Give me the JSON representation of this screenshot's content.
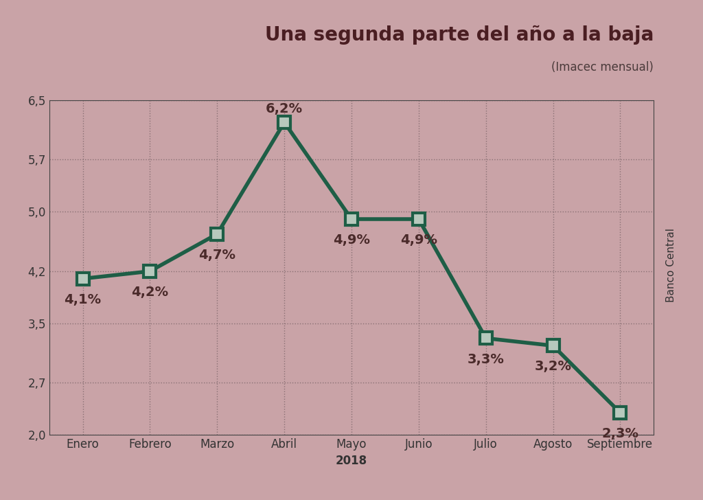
{
  "chart_data": {
    "type": "line",
    "title": "Una segunda parte del año a la baja",
    "subtitle": "(Imacec mensual)",
    "source": "Banco Central",
    "x_label": "2018",
    "categories": [
      "Enero",
      "Febrero",
      "Marzo",
      "Abril",
      "Mayo",
      "Junio",
      "Julio",
      "Agosto",
      "Septiembre"
    ],
    "values": [
      4.1,
      4.2,
      4.7,
      6.2,
      4.9,
      4.9,
      3.3,
      3.2,
      2.3
    ],
    "value_labels": [
      "4,1%",
      "4,2%",
      "4,7%",
      "6,2%",
      "4,9%",
      "4,9%",
      "3,3%",
      "3,2%",
      "2,3%"
    ],
    "color": "#1e5e46",
    "marker": "square",
    "line_style": "solid",
    "ylim": [
      2.0,
      6.5
    ],
    "yticks": [
      {
        "value": 2.0,
        "label": "2,0"
      },
      {
        "value": 2.7,
        "label": "2,7"
      },
      {
        "value": 3.5,
        "label": "3,5"
      },
      {
        "value": 4.2,
        "label": "4,2"
      },
      {
        "value": 5.0,
        "label": "5,0"
      },
      {
        "value": 5.7,
        "label": "5,7"
      },
      {
        "value": 6.5,
        "label": "6,5"
      }
    ],
    "grid": true,
    "data_labels": true
  }
}
